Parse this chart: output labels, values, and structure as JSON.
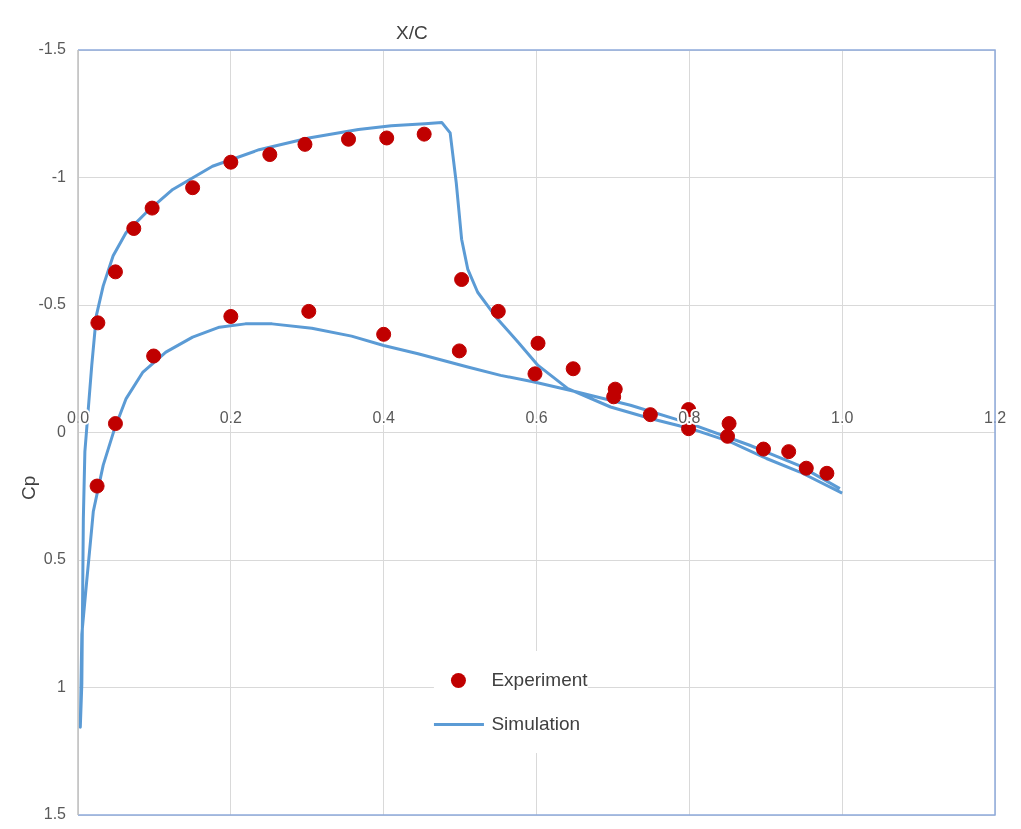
{
  "chart_data": {
    "type": "scatter",
    "xlabel": "X/C",
    "ylabel": "Cp",
    "xlim": [
      0,
      1.2
    ],
    "xticks": [
      {
        "value": 0,
        "label": "0.0"
      },
      {
        "value": 0.2,
        "label": "0.2"
      },
      {
        "value": 0.4,
        "label": "0.4"
      },
      {
        "value": 0.6,
        "label": "0.6"
      },
      {
        "value": 0.8,
        "label": "0.8"
      },
      {
        "value": 1,
        "label": "1.0"
      },
      {
        "value": 1.2,
        "label": "1.2"
      }
    ],
    "ylim": [
      1.5,
      -1.5
    ],
    "yticks": [
      -1.5,
      -1,
      -0.5,
      0,
      0.5,
      1,
      1.5
    ],
    "grid": true,
    "legend": "bottom",
    "series": [
      {
        "name": "Experiment",
        "type": "scatter",
        "color": "#c00000",
        "marker": "circle",
        "x": [
          0.026,
          0.049,
          0.073,
          0.097,
          0.15,
          0.2,
          0.251,
          0.297,
          0.354,
          0.404,
          0.453,
          0.502,
          0.55,
          0.602,
          0.648,
          0.703,
          0.701,
          0.749,
          0.799,
          0.852,
          0.897,
          0.93,
          0.953,
          0.98,
          0.025,
          0.049,
          0.099,
          0.2,
          0.302,
          0.4,
          0.499,
          0.598,
          0.799,
          0.85
        ],
        "values": [
          -0.43,
          -0.63,
          -0.8,
          -0.88,
          -0.96,
          -1.06,
          -1.09,
          -1.13,
          -1.15,
          -1.155,
          -1.17,
          -0.6,
          -0.475,
          -0.35,
          -0.25,
          -0.17,
          -0.14,
          -0.07,
          -0.09,
          -0.035,
          0.065,
          0.075,
          0.14,
          0.16,
          0.21,
          -0.035,
          -0.3,
          -0.455,
          -0.475,
          -0.385,
          -0.32,
          -0.23,
          -0.015,
          0.015
        ]
      },
      {
        "name": "Simulation",
        "type": "line",
        "color": "#5b9bd5",
        "marker": "none",
        "x": [
          0.997,
          0.944,
          0.879,
          0.801,
          0.723,
          0.645,
          0.597,
          0.553,
          0.51,
          0.445,
          0.4,
          0.358,
          0.306,
          0.254,
          0.219,
          0.185,
          0.15,
          0.115,
          0.085,
          0.063,
          0.048,
          0.033,
          0.02,
          0.018,
          0.011,
          0.005,
          0.003,
          0.005,
          0.007,
          0.009,
          0.011,
          0.018,
          0.024,
          0.033,
          0.046,
          0.063,
          0.089,
          0.124,
          0.176,
          0.237,
          0.302,
          0.367,
          0.41,
          0.454,
          0.476,
          0.487,
          0.495,
          0.502,
          0.51,
          0.523,
          0.549,
          0.576,
          0.602,
          0.641,
          0.697,
          0.749,
          0.801,
          0.853,
          0.901,
          0.944,
          1.0
        ],
        "values": [
          0.22,
          0.13,
          0.05,
          -0.035,
          -0.107,
          -0.165,
          -0.198,
          -0.224,
          -0.257,
          -0.309,
          -0.341,
          -0.378,
          -0.409,
          -0.426,
          -0.426,
          -0.413,
          -0.374,
          -0.315,
          -0.237,
          -0.133,
          -0.016,
          0.128,
          0.31,
          0.375,
          0.596,
          0.792,
          1.156,
          0.987,
          0.336,
          0.075,
          0.0,
          -0.263,
          -0.458,
          -0.575,
          -0.693,
          -0.784,
          -0.862,
          -0.953,
          -1.044,
          -1.109,
          -1.155,
          -1.188,
          -1.203,
          -1.211,
          -1.216,
          -1.175,
          -0.979,
          -0.758,
          -0.641,
          -0.55,
          -0.445,
          -0.354,
          -0.263,
          -0.172,
          -0.1,
          -0.055,
          -0.016,
          0.036,
          0.102,
          0.154,
          0.238
        ]
      }
    ]
  }
}
